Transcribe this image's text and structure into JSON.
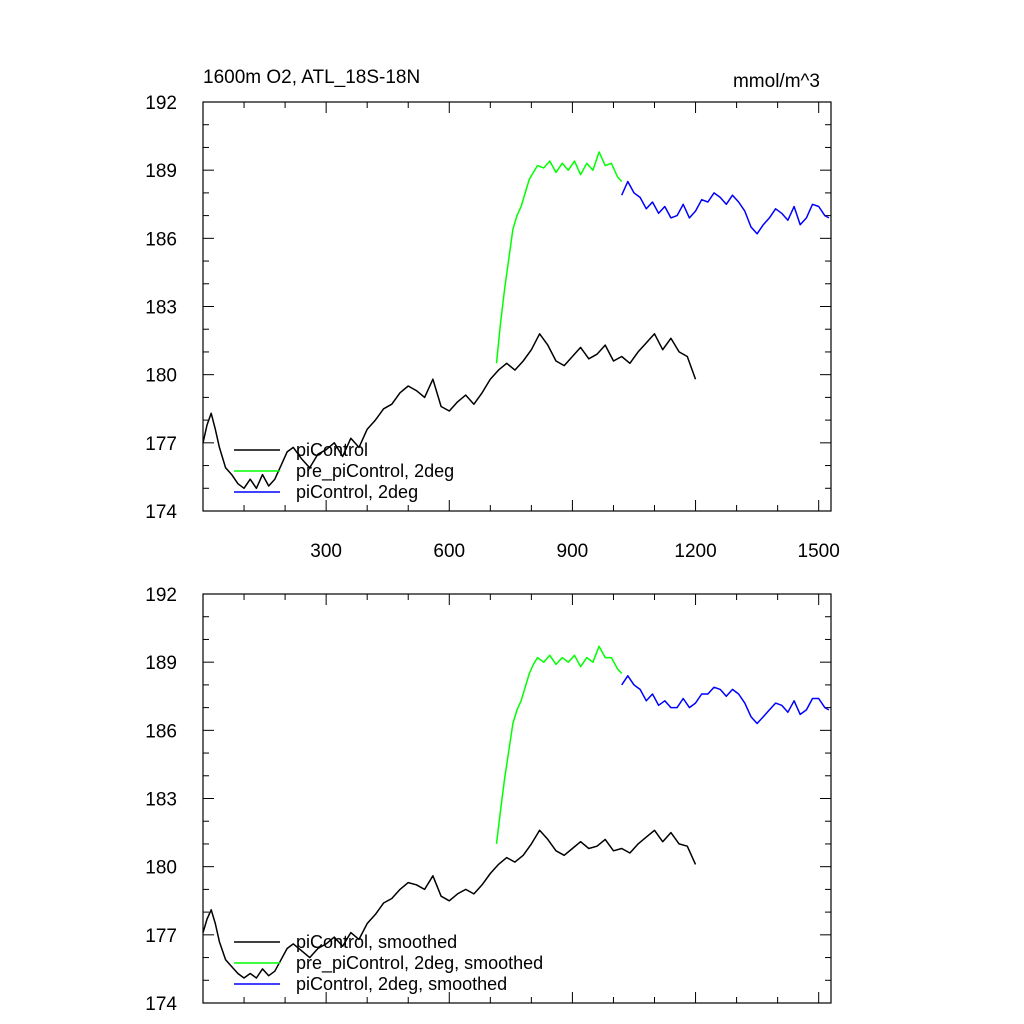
{
  "figure": {
    "title_left": "1600m O2, ATL_18S-18N",
    "title_right": "mmol/m^3"
  },
  "chart_data": [
    {
      "type": "line",
      "panel": "top",
      "title": "1600m O2, ATL_18S-18N",
      "units": "mmol/m^3",
      "xlim": [
        0,
        1530
      ],
      "ylim": [
        174,
        192
      ],
      "x_ticks": [
        300,
        600,
        900,
        1200,
        1500
      ],
      "x_tick_labels": [
        "300",
        "600",
        "900",
        "1200",
        "1500"
      ],
      "y_ticks": [
        174,
        177,
        180,
        183,
        186,
        189,
        192
      ],
      "y_tick_labels": [
        "174",
        "177",
        "180",
        "183",
        "186",
        "189",
        "192"
      ],
      "grid": false,
      "legend": [
        "piControl",
        "pre_piControl, 2deg",
        "piControl, 2deg"
      ],
      "series": [
        {
          "name": "piControl",
          "color": "#000000",
          "x": [
            0,
            10,
            20,
            30,
            40,
            55,
            70,
            85,
            100,
            115,
            130,
            145,
            160,
            175,
            190,
            205,
            220,
            240,
            260,
            280,
            300,
            320,
            340,
            360,
            380,
            400,
            420,
            440,
            460,
            480,
            500,
            520,
            540,
            560,
            580,
            600,
            620,
            640,
            660,
            680,
            700,
            720,
            740,
            760,
            780,
            800,
            820,
            840,
            860,
            880,
            900,
            920,
            940,
            960,
            980,
            1000,
            1020,
            1040,
            1060,
            1080,
            1100,
            1120,
            1140,
            1160,
            1180,
            1200
          ],
          "y": [
            177.0,
            177.8,
            178.3,
            177.6,
            176.8,
            175.9,
            175.6,
            175.2,
            175.0,
            175.4,
            175.0,
            175.6,
            175.1,
            175.4,
            176.0,
            176.6,
            176.8,
            176.3,
            175.9,
            176.5,
            176.7,
            177.0,
            176.4,
            177.2,
            176.8,
            177.6,
            178.0,
            178.5,
            178.7,
            179.2,
            179.5,
            179.3,
            179.0,
            179.8,
            178.6,
            178.4,
            178.8,
            179.1,
            178.7,
            179.2,
            179.8,
            180.2,
            180.5,
            180.2,
            180.6,
            181.1,
            181.8,
            181.3,
            180.6,
            180.4,
            180.8,
            181.2,
            180.7,
            180.9,
            181.3,
            180.6,
            180.8,
            180.5,
            181.0,
            181.4,
            181.8,
            181.1,
            181.6,
            181.0,
            180.8,
            179.8
          ]
        },
        {
          "name": "pre_piControl, 2deg",
          "color": "#00ff00",
          "x": [
            715,
            725,
            735,
            745,
            755,
            765,
            775,
            785,
            795,
            805,
            815,
            830,
            845,
            860,
            875,
            890,
            905,
            920,
            935,
            950,
            965,
            980,
            995,
            1010,
            1020
          ],
          "y": [
            180.5,
            182.3,
            183.8,
            185.1,
            186.4,
            187.0,
            187.4,
            188.0,
            188.6,
            188.9,
            189.2,
            189.1,
            189.4,
            188.9,
            189.3,
            189.0,
            189.4,
            188.8,
            189.3,
            189.0,
            189.8,
            189.2,
            189.3,
            188.7,
            188.5
          ]
        },
        {
          "name": "piControl, 2deg",
          "color": "#0000ff",
          "x": [
            1020,
            1035,
            1050,
            1065,
            1080,
            1095,
            1110,
            1125,
            1140,
            1155,
            1170,
            1185,
            1200,
            1215,
            1230,
            1245,
            1260,
            1275,
            1290,
            1305,
            1320,
            1335,
            1350,
            1365,
            1380,
            1395,
            1410,
            1425,
            1440,
            1455,
            1470,
            1485,
            1500,
            1515,
            1525
          ],
          "y": [
            187.9,
            188.5,
            188.0,
            187.8,
            187.3,
            187.6,
            187.1,
            187.4,
            186.9,
            187.0,
            187.5,
            186.9,
            187.2,
            187.7,
            187.6,
            188.0,
            187.8,
            187.5,
            187.9,
            187.6,
            187.2,
            186.5,
            186.2,
            186.6,
            186.9,
            187.3,
            187.1,
            186.8,
            187.4,
            186.6,
            186.9,
            187.5,
            187.4,
            187.0,
            186.9
          ]
        }
      ]
    },
    {
      "type": "line",
      "panel": "bottom",
      "xlim": [
        0,
        1530
      ],
      "ylim": [
        174,
        192
      ],
      "x_ticks": [
        300,
        600,
        900,
        1200,
        1500
      ],
      "y_ticks": [
        174,
        177,
        180,
        183,
        186,
        189,
        192
      ],
      "y_tick_labels": [
        "174",
        "177",
        "180",
        "183",
        "186",
        "189",
        "192"
      ],
      "grid": false,
      "legend": [
        "piControl, smoothed",
        "pre_piControl, 2deg, smoothed",
        "piControl, 2deg, smoothed"
      ],
      "series": [
        {
          "name": "piControl, smoothed",
          "color": "#000000",
          "x": [
            0,
            10,
            20,
            30,
            40,
            55,
            70,
            85,
            100,
            115,
            130,
            145,
            160,
            175,
            190,
            205,
            220,
            240,
            260,
            280,
            300,
            320,
            340,
            360,
            380,
            400,
            420,
            440,
            460,
            480,
            500,
            520,
            540,
            560,
            580,
            600,
            620,
            640,
            660,
            680,
            700,
            720,
            740,
            760,
            780,
            800,
            820,
            840,
            860,
            880,
            900,
            920,
            940,
            960,
            980,
            1000,
            1020,
            1040,
            1060,
            1080,
            1100,
            1120,
            1140,
            1160,
            1180,
            1200
          ],
          "y": [
            177.1,
            177.7,
            178.1,
            177.5,
            176.7,
            175.9,
            175.6,
            175.3,
            175.1,
            175.3,
            175.1,
            175.5,
            175.2,
            175.4,
            175.9,
            176.4,
            176.6,
            176.3,
            176.0,
            176.4,
            176.6,
            176.9,
            176.5,
            177.1,
            176.8,
            177.5,
            177.9,
            178.4,
            178.6,
            179.0,
            179.3,
            179.2,
            179.0,
            179.6,
            178.7,
            178.5,
            178.8,
            179.0,
            178.8,
            179.2,
            179.7,
            180.1,
            180.4,
            180.2,
            180.5,
            181.0,
            181.6,
            181.2,
            180.7,
            180.5,
            180.8,
            181.1,
            180.8,
            180.9,
            181.2,
            180.7,
            180.8,
            180.6,
            181.0,
            181.3,
            181.6,
            181.1,
            181.5,
            181.0,
            180.9,
            180.1
          ]
        },
        {
          "name": "pre_piControl, 2deg, smoothed",
          "color": "#00ff00",
          "x": [
            715,
            725,
            735,
            745,
            755,
            765,
            775,
            785,
            795,
            805,
            815,
            830,
            845,
            860,
            875,
            890,
            905,
            920,
            935,
            950,
            965,
            980,
            995,
            1010,
            1020
          ],
          "y": [
            181.0,
            182.5,
            183.9,
            185.1,
            186.3,
            186.9,
            187.3,
            187.9,
            188.5,
            188.9,
            189.2,
            189.0,
            189.3,
            188.9,
            189.2,
            189.0,
            189.3,
            188.8,
            189.2,
            189.0,
            189.7,
            189.2,
            189.2,
            188.7,
            188.5
          ]
        },
        {
          "name": "piControl, 2deg, smoothed",
          "color": "#0000ff",
          "x": [
            1020,
            1035,
            1050,
            1065,
            1080,
            1095,
            1110,
            1125,
            1140,
            1155,
            1170,
            1185,
            1200,
            1215,
            1230,
            1245,
            1260,
            1275,
            1290,
            1305,
            1320,
            1335,
            1350,
            1365,
            1380,
            1395,
            1410,
            1425,
            1440,
            1455,
            1470,
            1485,
            1500,
            1515,
            1525
          ],
          "y": [
            188.0,
            188.4,
            188.0,
            187.8,
            187.3,
            187.6,
            187.1,
            187.3,
            187.0,
            187.0,
            187.4,
            187.0,
            187.2,
            187.6,
            187.6,
            187.9,
            187.8,
            187.5,
            187.8,
            187.6,
            187.2,
            186.6,
            186.3,
            186.6,
            186.9,
            187.2,
            187.1,
            186.8,
            187.3,
            186.7,
            186.9,
            187.4,
            187.4,
            187.0,
            186.9
          ]
        }
      ]
    }
  ]
}
